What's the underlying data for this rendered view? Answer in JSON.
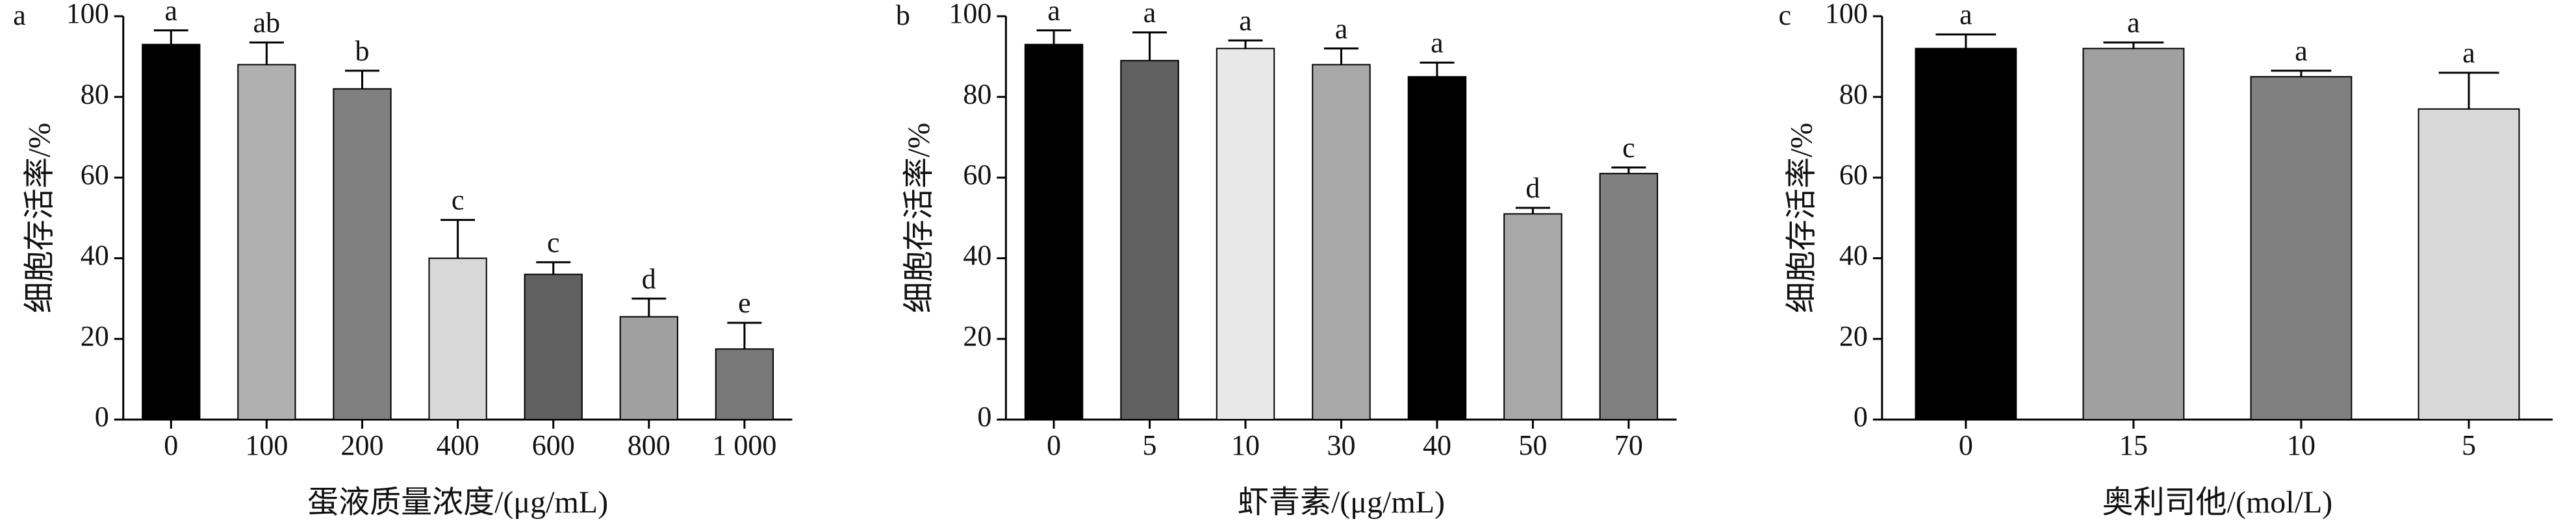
{
  "chart_data": [
    {
      "type": "bar",
      "panel_label": "a",
      "ylabel": "细胞存活率/%",
      "xlabel": "蛋液质量浓度/(μg/mL)",
      "categories": [
        "0",
        "100",
        "200",
        "400",
        "600",
        "800",
        "1 000"
      ],
      "values": [
        93,
        88,
        82,
        40,
        36,
        25.5,
        17.5
      ],
      "errors": [
        3.5,
        5.5,
        4.5,
        9.5,
        3,
        4.5,
        6.5
      ],
      "annotations": [
        "a",
        "ab",
        "b",
        "c",
        "c",
        "d",
        "e"
      ],
      "colors": [
        "#000000",
        "#b0b0b0",
        "#808080",
        "#d8d8d8",
        "#606060",
        "#a0a0a0",
        "#787878"
      ],
      "ylim": [
        0,
        100
      ],
      "yticks": [
        0,
        20,
        40,
        60,
        80,
        100
      ]
    },
    {
      "type": "bar",
      "panel_label": "b",
      "ylabel": "细胞存活率/%",
      "xlabel": "虾青素/(μg/mL)",
      "categories": [
        "0",
        "5",
        "10",
        "30",
        "40",
        "50",
        "70"
      ],
      "values": [
        93,
        89,
        92,
        88,
        85,
        51,
        61
      ],
      "errors": [
        3.5,
        7,
        2,
        4,
        3.5,
        1.5,
        1.5
      ],
      "annotations": [
        "a",
        "a",
        "a",
        "a",
        "a",
        "d",
        "c"
      ],
      "colors": [
        "#000000",
        "#606060",
        "#e8e8e8",
        "#a8a8a8",
        "#000000",
        "#a8a8a8",
        "#808080"
      ],
      "ylim": [
        0,
        100
      ],
      "yticks": [
        0,
        20,
        40,
        60,
        80,
        100
      ]
    },
    {
      "type": "bar",
      "panel_label": "c",
      "ylabel": "细胞存活率/%",
      "xlabel": "奥利司他/(mol/L)",
      "categories": [
        "0",
        "15",
        "10",
        "5"
      ],
      "values": [
        92,
        92,
        85,
        77
      ],
      "errors": [
        3.5,
        1.5,
        1.5,
        9
      ],
      "annotations": [
        "a",
        "a",
        "a",
        "a"
      ],
      "colors": [
        "#000000",
        "#a0a0a0",
        "#808080",
        "#d8d8d8"
      ],
      "ylim": [
        0,
        100
      ],
      "yticks": [
        0,
        20,
        40,
        60,
        80,
        100
      ]
    }
  ]
}
